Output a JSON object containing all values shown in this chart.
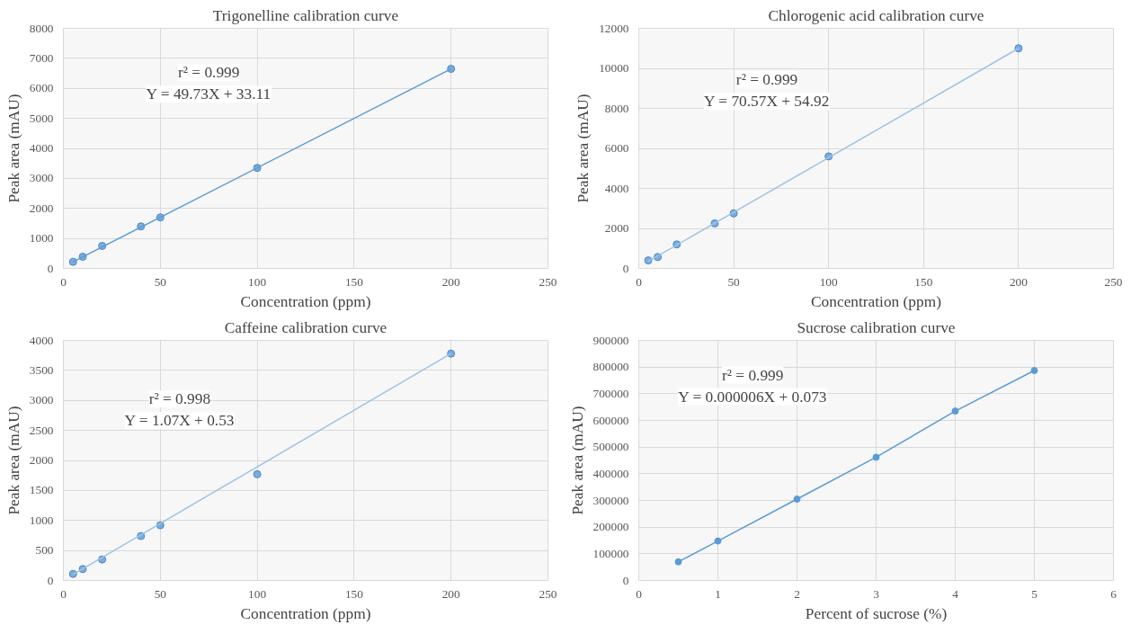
{
  "chart_data": [
    {
      "type": "scatter",
      "title": "Trigonelline calibration curve",
      "xlabel": "Concentration (ppm)",
      "ylabel": "Peak area (mAU)",
      "xlim": [
        0,
        250
      ],
      "xticks": [
        0,
        50,
        100,
        150,
        200,
        250
      ],
      "ylim": [
        0,
        8000
      ],
      "yticks": [
        0,
        1000,
        2000,
        3000,
        4000,
        5000,
        6000,
        7000,
        8000
      ],
      "grid": true,
      "annotations": [
        "r² = 0.999",
        "Y = 49.73X + 33.11"
      ],
      "series": [
        {
          "marker": "circle",
          "color": "#5b9bd5",
          "x": [
            5,
            10,
            20,
            40,
            50,
            100,
            200
          ],
          "values": [
            220,
            390,
            750,
            1400,
            1700,
            3350,
            6650
          ]
        },
        {
          "type": "line",
          "color": "#5b9bd5",
          "x": [
            5,
            200
          ],
          "values": [
            220,
            6650
          ]
        }
      ]
    },
    {
      "type": "scatter",
      "title": "Chlorogenic acid calibration curve",
      "xlabel": "Concentration (ppm)",
      "ylabel": "Peak area (mAU)",
      "xlim": [
        0,
        250
      ],
      "xticks": [
        0,
        50,
        100,
        150,
        200,
        250
      ],
      "ylim": [
        0,
        12000
      ],
      "yticks": [
        0,
        2000,
        4000,
        6000,
        8000,
        10000,
        12000
      ],
      "grid": true,
      "annotations": [
        "r² = 0.999",
        "Y = 70.57X + 54.92"
      ],
      "series": [
        {
          "marker": "circle",
          "color": "#5b9bd5",
          "x": [
            5,
            10,
            20,
            40,
            50,
            100,
            200
          ],
          "values": [
            400,
            570,
            1200,
            2250,
            2750,
            5600,
            11000
          ]
        },
        {
          "type": "line",
          "color": "#9dc3e6",
          "x": [
            5,
            200
          ],
          "values": [
            350,
            11000
          ]
        }
      ]
    },
    {
      "type": "scatter",
      "title": "Caffeine calibration curve",
      "xlabel": "Concentration (ppm)",
      "ylabel": "Peak area (mAU)",
      "xlim": [
        0,
        250
      ],
      "xticks": [
        0,
        50,
        100,
        150,
        200,
        250
      ],
      "ylim": [
        0,
        4000
      ],
      "yticks": [
        0,
        500,
        1000,
        1500,
        2000,
        2500,
        3000,
        3500,
        4000
      ],
      "grid": true,
      "annotations": [
        "r² = 0.998",
        "Y = 1.07X + 0.53"
      ],
      "series": [
        {
          "marker": "circle",
          "color": "#5b9bd5",
          "x": [
            5,
            10,
            20,
            40,
            50,
            100,
            200
          ],
          "values": [
            110,
            190,
            350,
            740,
            920,
            1770,
            3780
          ]
        },
        {
          "type": "line",
          "color": "#9dc3e6",
          "x": [
            5,
            200
          ],
          "values": [
            100,
            3780
          ]
        }
      ]
    },
    {
      "type": "line",
      "title": "Sucrose calibration curve",
      "xlabel": "Percent of sucrose (%)",
      "ylabel": "Peak area (mAU)",
      "xlim": [
        0,
        6
      ],
      "xticks": [
        0,
        1,
        2,
        3,
        4,
        5,
        6
      ],
      "ylim": [
        0,
        900000
      ],
      "yticks": [
        0,
        100000,
        200000,
        300000,
        400000,
        500000,
        600000,
        700000,
        800000,
        900000
      ],
      "grid": true,
      "marker": "circle",
      "annotations": [
        "r² = 0.999",
        "Y = 0.000006X + 0.073"
      ],
      "series": [
        {
          "color": "#5b9bd5",
          "x": [
            0.5,
            1,
            2,
            3,
            4,
            5
          ],
          "values": [
            70000,
            148000,
            305000,
            462000,
            635000,
            787000
          ]
        }
      ]
    }
  ]
}
